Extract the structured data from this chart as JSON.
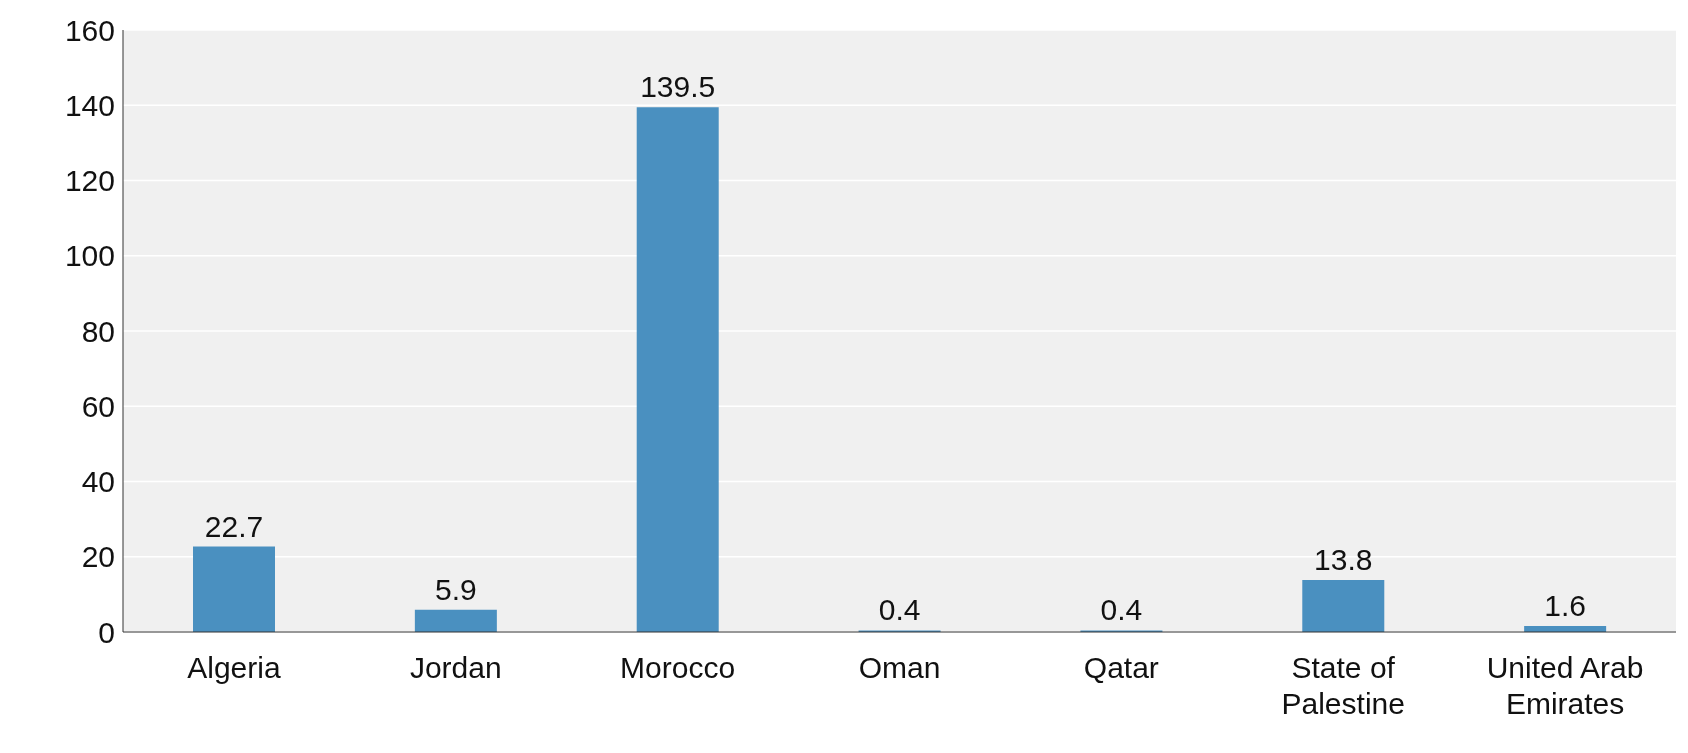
{
  "chart_data": {
    "type": "bar",
    "categories": [
      "Algeria",
      "Jordan",
      "Morocco",
      "Oman",
      "Qatar",
      "State of Palestine",
      "United Arab Emirates"
    ],
    "values": [
      22.7,
      5.9,
      139.5,
      0.4,
      0.4,
      13.8,
      1.6
    ],
    "color": "#4a90c0",
    "ylim": [
      0,
      160
    ],
    "yticks": [
      0,
      20,
      40,
      60,
      80,
      100,
      120,
      140,
      160
    ],
    "grid": "y",
    "data_labels": true
  }
}
